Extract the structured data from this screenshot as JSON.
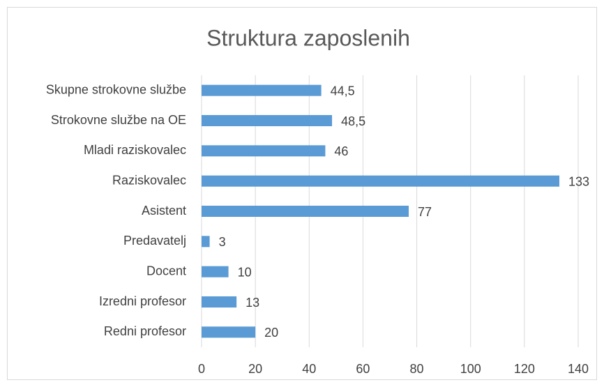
{
  "chart_data": {
    "type": "bar",
    "orientation": "horizontal",
    "title": "Struktura zaposlenih",
    "categories": [
      "Skupne strokovne službe",
      "Strokovne službe na OE",
      "Mladi raziskovalec",
      "Raziskovalec",
      "Asistent",
      "Predavatelj",
      "Docent",
      "Izredni profesor",
      "Redni profesor"
    ],
    "values": [
      44.5,
      48.5,
      46,
      133,
      77,
      3,
      10,
      13,
      20
    ],
    "value_labels": [
      "44,5",
      "48,5",
      "46",
      "133",
      "77",
      "3",
      "10",
      "13",
      "20"
    ],
    "color": "#5b9bd5",
    "xlim": [
      0,
      140
    ],
    "xticks": [
      0,
      20,
      40,
      60,
      80,
      100,
      120,
      140
    ],
    "grid": true
  }
}
